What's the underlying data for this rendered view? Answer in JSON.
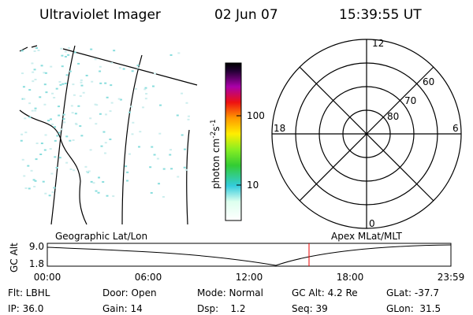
{
  "header": {
    "instrument": "Ultraviolet Imager",
    "date": "02 Jun 07",
    "time": "15:39:55 UT"
  },
  "colorbar": {
    "label": [
      "photon cm",
      "-2",
      "s",
      "-1"
    ],
    "ticks": [
      "100",
      "10"
    ]
  },
  "polar": {
    "mlt_labels": [
      "12",
      "18",
      "6",
      "0"
    ],
    "lat_labels": [
      "60",
      "70",
      "80"
    ]
  },
  "orbit": {
    "left_label": "Geographic Lat/Lon",
    "right_label": "Apex MLat/MLT",
    "y_label": "GC Alt",
    "y_ticks": [
      "9.0",
      "1.8"
    ],
    "x_ticks": [
      "00:00",
      "06:00",
      "12:00",
      "18:00",
      "23:59"
    ]
  },
  "info": {
    "rows": [
      [
        "Flt: LBHL",
        "Door: Open",
        "Mode: Normal",
        "GC Alt: 4.2 Re",
        "GLat: -37.7"
      ],
      [
        "IP: 36.0",
        "Gain: 14",
        "Dsp:    1.2",
        "Seq: 39",
        "GLon:  31.5"
      ]
    ]
  }
}
